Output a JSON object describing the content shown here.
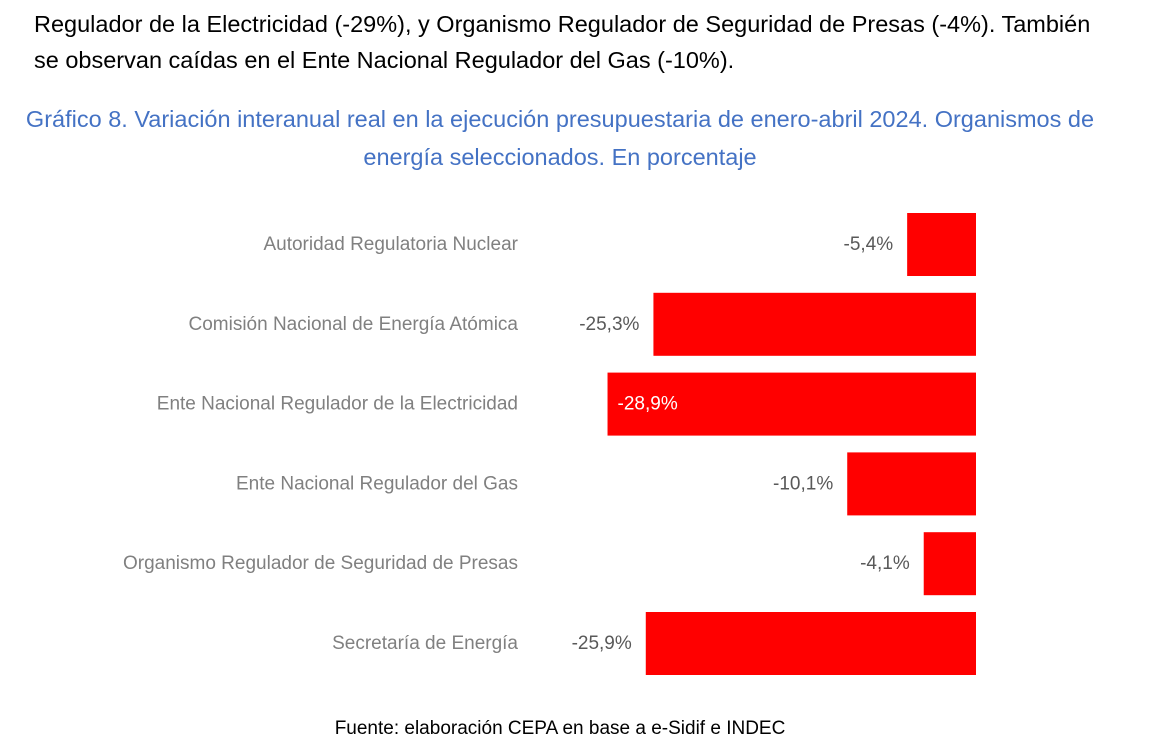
{
  "intro_text": "Regulador de la Electricidad (-29%), y Organismo Regulador de Seguridad de Presas (-4%). También se observan caídas en el Ente Nacional Regulador del Gas (-10%).",
  "chart_data": {
    "type": "bar",
    "orientation": "horizontal",
    "title": "Gráfico 8. Variación interanual real en la ejecución presupuestaria de enero-abril 2024. Organismos de energía seleccionados. En porcentaje",
    "categories": [
      "Autoridad Regulatoria Nuclear",
      "Comisión Nacional de Energía Atómica",
      "Ente Nacional Regulador de la Electricidad",
      "Ente Nacional Regulador del Gas",
      "Organismo Regulador de Seguridad de Presas",
      "Secretaría de Energía"
    ],
    "values": [
      -5.4,
      -25.3,
      -28.9,
      -10.1,
      -4.1,
      -25.9
    ],
    "data_labels": [
      "-5,4%",
      "-25,3%",
      "-28,9%",
      "-10,1%",
      "-4,1%",
      "-25,9%"
    ],
    "bar_color": "#ff0000",
    "category_label_color": "#808080",
    "data_label_color": "#595959",
    "inside_label_color": "#ffffff",
    "xlim": [
      -30,
      0
    ],
    "grid": false,
    "legend": "none"
  },
  "source": "Fuente: elaboración CEPA en base a e-Sidif e INDEC"
}
